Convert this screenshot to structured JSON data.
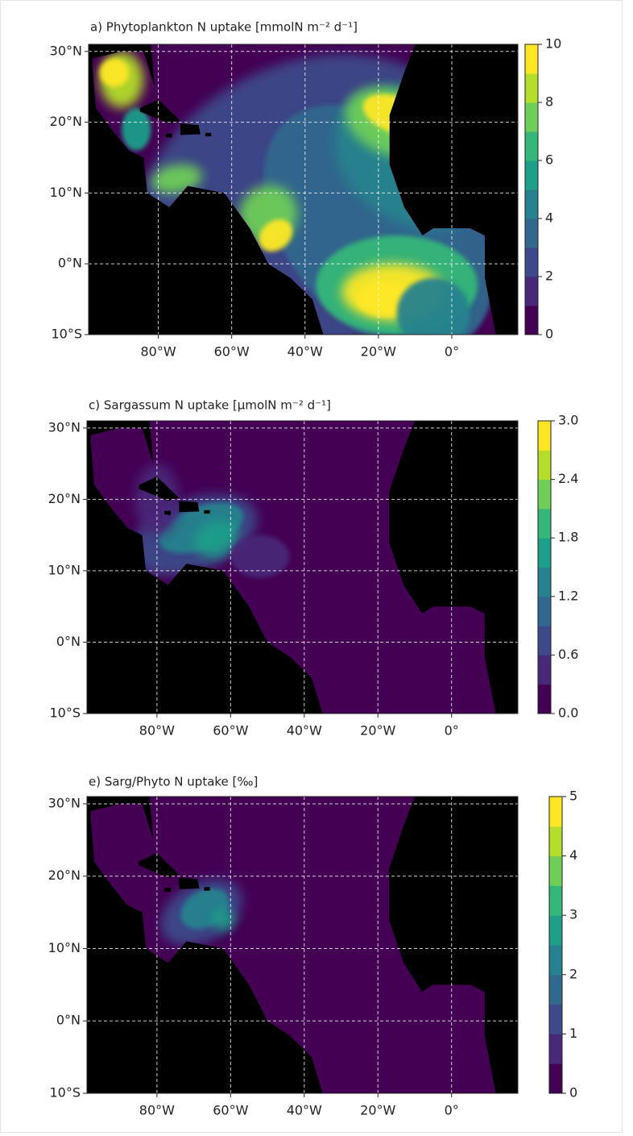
{
  "chart_data": [
    {
      "type": "map",
      "title": "a) Phytoplankton N uptake [mmolN m⁻² d⁻¹]",
      "xlim": [
        -99,
        18
      ],
      "ylim": [
        -10,
        31
      ],
      "xticks": [
        {
          "value": -80,
          "label": "80°W"
        },
        {
          "value": -60,
          "label": "60°W"
        },
        {
          "value": -40,
          "label": "40°W"
        },
        {
          "value": -20,
          "label": "20°W"
        },
        {
          "value": 0,
          "label": "0°"
        }
      ],
      "yticks": [
        {
          "value": -10,
          "label": "10°S"
        },
        {
          "value": 0,
          "label": "0°N"
        },
        {
          "value": 10,
          "label": "10°N"
        },
        {
          "value": 20,
          "label": "20°N"
        },
        {
          "value": 30,
          "label": "30°N"
        }
      ],
      "grid": true,
      "colorbar": {
        "clim": [
          0,
          10
        ],
        "ticks": [
          0,
          2,
          4,
          6,
          8,
          10
        ],
        "colors": [
          "#440154",
          "#482878",
          "#3e4989",
          "#31688e",
          "#26828e",
          "#1f9e89",
          "#35b779",
          "#6ece58",
          "#b5de2b",
          "#fde725"
        ]
      }
    },
    {
      "type": "map",
      "title": "c) Sargassum N uptake [μmolN m⁻² d⁻¹]",
      "xlim": [
        -99,
        18
      ],
      "ylim": [
        -10,
        31
      ],
      "xticks": [
        {
          "value": -80,
          "label": "80°W"
        },
        {
          "value": -60,
          "label": "60°W"
        },
        {
          "value": -40,
          "label": "40°W"
        },
        {
          "value": -20,
          "label": "20°W"
        },
        {
          "value": 0,
          "label": "0°"
        }
      ],
      "yticks": [
        {
          "value": -10,
          "label": "10°S"
        },
        {
          "value": 0,
          "label": "0°N"
        },
        {
          "value": 10,
          "label": "10°N"
        },
        {
          "value": 20,
          "label": "20°N"
        },
        {
          "value": 30,
          "label": "30°N"
        }
      ],
      "grid": true,
      "colorbar": {
        "clim": [
          0,
          3
        ],
        "ticks": [
          {
            "value": 0,
            "label": "0.0"
          },
          {
            "value": 0.6,
            "label": "0.6"
          },
          {
            "value": 1.2,
            "label": "1.2"
          },
          {
            "value": 1.8,
            "label": "1.8"
          },
          {
            "value": 2.4,
            "label": "2.4"
          },
          {
            "value": 3,
            "label": "3.0"
          }
        ],
        "colors": [
          "#440154",
          "#482878",
          "#3e4989",
          "#31688e",
          "#26828e",
          "#1f9e89",
          "#35b779",
          "#6ece58",
          "#b5de2b",
          "#fde725"
        ]
      }
    },
    {
      "type": "map",
      "title": "e) Sarg/Phyto N uptake [‰]",
      "xlim": [
        -99,
        18
      ],
      "ylim": [
        -10,
        31
      ],
      "xticks": [
        {
          "value": -80,
          "label": "80°W"
        },
        {
          "value": -60,
          "label": "60°W"
        },
        {
          "value": -40,
          "label": "40°W"
        },
        {
          "value": -20,
          "label": "20°W"
        },
        {
          "value": 0,
          "label": "0°"
        }
      ],
      "yticks": [
        {
          "value": -10,
          "label": "10°S"
        },
        {
          "value": 0,
          "label": "0°N"
        },
        {
          "value": 10,
          "label": "10°N"
        },
        {
          "value": 20,
          "label": "20°N"
        },
        {
          "value": 30,
          "label": "30°N"
        }
      ],
      "grid": true,
      "colorbar": {
        "clim": [
          0,
          5
        ],
        "ticks": [
          0,
          1,
          2,
          3,
          4,
          5
        ],
        "colors": [
          "#440154",
          "#482878",
          "#3e4989",
          "#31688e",
          "#26828e",
          "#1f9e89",
          "#35b779",
          "#6ece58",
          "#b5de2b",
          "#fde725"
        ]
      }
    }
  ]
}
